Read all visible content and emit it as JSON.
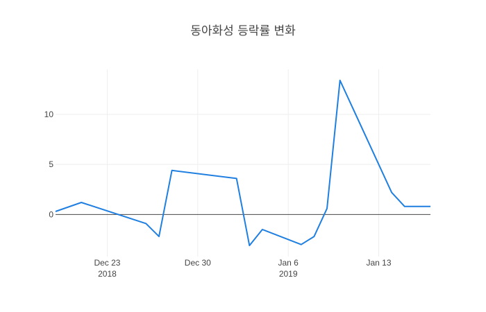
{
  "chart_data": {
    "type": "line",
    "title": "동아화성 등락률 변화",
    "xlabel": "",
    "ylabel": "",
    "xlim": [
      "2018-12-19",
      "2019-01-17"
    ],
    "ylim": [
      -4.2,
      14.5
    ],
    "grid": true,
    "legend": "none",
    "x_ticks": [
      {
        "date": "2018-12-23",
        "label": "Dec 23",
        "sublabel": "2018"
      },
      {
        "date": "2018-12-30",
        "label": "Dec 30",
        "sublabel": ""
      },
      {
        "date": "2019-01-06",
        "label": "Jan 6",
        "sublabel": "2019"
      },
      {
        "date": "2019-01-13",
        "label": "Jan 13",
        "sublabel": ""
      }
    ],
    "y_ticks": [
      0,
      5,
      10
    ],
    "series": [
      {
        "name": "",
        "color": "#1f7fe0",
        "x": [
          "2018-12-19",
          "2018-12-21",
          "2018-12-26",
          "2018-12-27",
          "2018-12-28",
          "2019-01-02",
          "2019-01-03",
          "2019-01-04",
          "2019-01-07",
          "2019-01-08",
          "2019-01-09",
          "2019-01-10",
          "2019-01-14",
          "2019-01-15",
          "2019-01-16",
          "2019-01-17"
        ],
        "y": [
          0.3,
          1.2,
          -0.9,
          -2.2,
          4.4,
          3.6,
          -3.1,
          -1.5,
          -3.0,
          -2.2,
          0.6,
          13.4,
          2.2,
          0.8,
          0.8,
          0.8
        ]
      }
    ]
  }
}
